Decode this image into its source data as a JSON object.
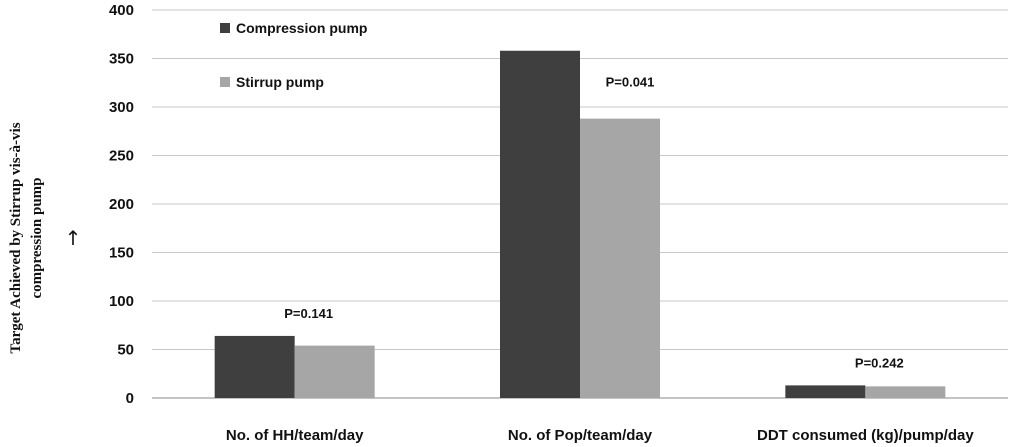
{
  "chart_data": {
    "type": "bar",
    "categories": [
      "No. of HH/team/day",
      "No. of Pop/team/day",
      "DDT consumed (kg)/pump/day"
    ],
    "series": [
      {
        "name": "Compression pump",
        "values": [
          64,
          358,
          13
        ],
        "color": "#3f3f3f"
      },
      {
        "name": "Stirrup pump",
        "values": [
          54,
          288,
          12
        ],
        "color": "#a6a6a6"
      }
    ],
    "annotations": [
      "P=0.141",
      "P=0.041",
      "P=0.242"
    ],
    "ylabel_line1": "Target Achieved by Stirrup vis-à-vis",
    "ylabel_line2": "compression pump",
    "ylabel_arrow": "↑",
    "ylim": [
      0,
      400
    ],
    "yticks": [
      0,
      50,
      100,
      150,
      200,
      250,
      300,
      350,
      400
    ],
    "grid": true,
    "legend_position": "top-left"
  }
}
